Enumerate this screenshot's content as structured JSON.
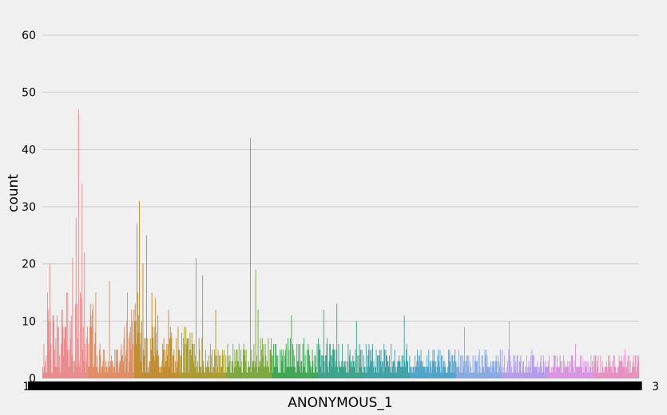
{
  "chart_data": {
    "type": "bar",
    "xlabel": "ANONYMOUS_1",
    "ylabel": "count",
    "ylim": [
      0,
      65
    ],
    "yticks": [
      0,
      10,
      20,
      30,
      40,
      50,
      60
    ],
    "grid": true,
    "background": "#f0f0f0",
    "grid_color": "#cbcbcb",
    "palette": [
      "#e8888a",
      "#e08a5e",
      "#c08a2e",
      "#a8992a",
      "#7aa63a",
      "#3ba44e",
      "#3aa088",
      "#3aa0a6",
      "#4aa2c8",
      "#86a8e0",
      "#b29ae8",
      "#d891e0",
      "#e88cc0"
    ],
    "x_start_label": "1",
    "x_end_label": "3",
    "n_bars": 1000,
    "peaks": [
      {
        "pos": 0.008,
        "h": 15
      },
      {
        "pos": 0.012,
        "h": 20
      },
      {
        "pos": 0.022,
        "h": 7
      },
      {
        "pos": 0.042,
        "h": 15
      },
      {
        "pos": 0.05,
        "h": 21
      },
      {
        "pos": 0.056,
        "h": 28
      },
      {
        "pos": 0.06,
        "h": 47
      },
      {
        "pos": 0.066,
        "h": 34
      },
      {
        "pos": 0.07,
        "h": 22
      },
      {
        "pos": 0.084,
        "h": 13
      },
      {
        "pos": 0.112,
        "h": 17
      },
      {
        "pos": 0.149,
        "h": 12
      },
      {
        "pos": 0.158,
        "h": 27
      },
      {
        "pos": 0.162,
        "h": 31
      },
      {
        "pos": 0.168,
        "h": 20
      },
      {
        "pos": 0.174,
        "h": 25
      },
      {
        "pos": 0.193,
        "h": 11
      },
      {
        "pos": 0.211,
        "h": 12
      },
      {
        "pos": 0.24,
        "h": 9
      },
      {
        "pos": 0.257,
        "h": 21
      },
      {
        "pos": 0.268,
        "h": 18
      },
      {
        "pos": 0.29,
        "h": 12
      },
      {
        "pos": 0.348,
        "h": 42
      },
      {
        "pos": 0.357,
        "h": 19
      },
      {
        "pos": 0.361,
        "h": 12
      },
      {
        "pos": 0.417,
        "h": 11
      },
      {
        "pos": 0.471,
        "h": 12
      },
      {
        "pos": 0.493,
        "h": 13
      },
      {
        "pos": 0.526,
        "h": 10
      },
      {
        "pos": 0.606,
        "h": 11
      },
      {
        "pos": 0.707,
        "h": 9
      },
      {
        "pos": 0.782,
        "h": 10
      },
      {
        "pos": 0.893,
        "h": 6
      }
    ]
  }
}
